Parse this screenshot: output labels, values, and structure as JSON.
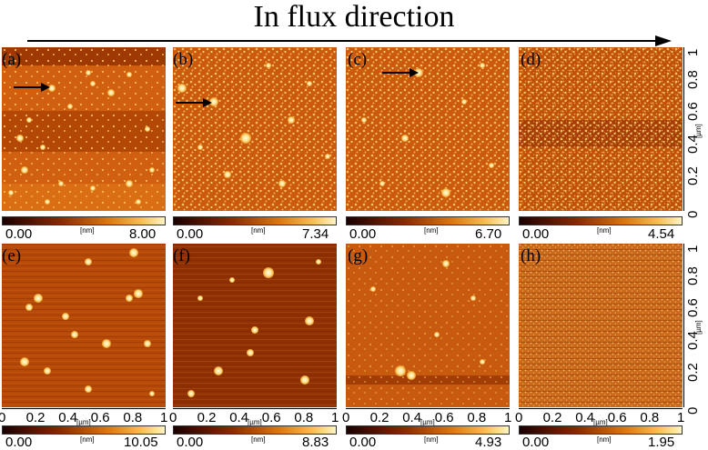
{
  "title": "In flux direction",
  "panels": [
    {
      "label": "(a)",
      "cmin": "0.00",
      "cmax": "8.00",
      "unit": "[nm]"
    },
    {
      "label": "(b)",
      "cmin": "0.00",
      "cmax": "7.34",
      "unit": "[nm]"
    },
    {
      "label": "(c)",
      "cmin": "0.00",
      "cmax": "6.70",
      "unit": "[nm]"
    },
    {
      "label": "(d)",
      "cmin": "0.00",
      "cmax": "4.54",
      "unit": "[nm]"
    },
    {
      "label": "(e)",
      "cmin": "0.00",
      "cmax": "10.05",
      "unit": "[nm]"
    },
    {
      "label": "(f)",
      "cmin": "0.00",
      "cmax": "8.83",
      "unit": "[nm]"
    },
    {
      "label": "(g)",
      "cmin": "0.00",
      "cmax": "4.93",
      "unit": "[nm]"
    },
    {
      "label": "(h)",
      "cmin": "0.00",
      "cmax": "1.95",
      "unit": "[nm]"
    }
  ],
  "axis": {
    "ticks": [
      "0",
      "0.2",
      "0.4",
      "0.6",
      "0.8",
      "1"
    ],
    "unit": "[µm]"
  },
  "colors": {
    "dark": "#5a1500",
    "mid": "#c85a08",
    "bright": "#f4a040",
    "particle": "#fff2c0"
  }
}
